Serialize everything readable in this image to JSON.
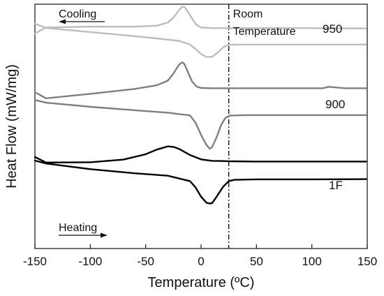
{
  "chart_data": {
    "type": "line",
    "xlabel": "Temperature (ºC)",
    "ylabel": "Heat Flow (mW/mg)",
    "xlim": [
      -150,
      150
    ],
    "xticks": [
      -150,
      -100,
      -50,
      0,
      50,
      100,
      150
    ],
    "xtick_labels": [
      "-150",
      "-100",
      "-50",
      "0",
      "50",
      "100",
      "150"
    ],
    "y_tick_labels_shown": false,
    "grid": false,
    "legend": "none",
    "ylim": [
      0,
      100
    ],
    "reference_line": {
      "x": 25,
      "label_lines": [
        "Room",
        "Temperature"
      ],
      "style": "dash-dot"
    },
    "annotations": {
      "cooling": "Cooling",
      "heating": "Heating"
    },
    "series": [
      {
        "name": "950",
        "color": "#bdbdbd",
        "curves": [
          {
            "direction": "cooling",
            "x": [
              -150,
              -140,
              -100,
              -60,
              -40,
              -30,
              -25,
              -20,
              -17,
              -15,
              -12,
              -8,
              -4,
              0,
              10,
              30,
              60,
              100,
              149
            ],
            "y": [
              88,
              90.5,
              90.8,
              90.8,
              91.2,
              92.5,
              94.5,
              97.5,
              99,
              98.8,
              97,
              94,
              91.5,
              90.5,
              90.2,
              90.2,
              90.2,
              90.2,
              90.1
            ]
          },
          {
            "direction": "heating",
            "x": [
              -150,
              -140,
              -100,
              -60,
              -40,
              -20,
              -10,
              -5,
              0,
              5,
              10,
              15,
              20,
              25,
              40,
              80,
              120,
              149
            ],
            "y": [
              92,
              90.3,
              88.6,
              86.9,
              86,
              85,
              83.5,
              81.7,
              79.6,
              78.4,
              78.5,
              80.2,
              82.4,
              83.4,
              83.5,
              83.5,
              83.5,
              83.5
            ]
          }
        ]
      },
      {
        "name": "900",
        "color": "#7f7f7f",
        "curves": [
          {
            "direction": "cooling",
            "x": [
              -150,
              -140,
              -100,
              -60,
              -40,
              -30,
              -25,
              -20,
              -17,
              -15,
              -12,
              -8,
              -4,
              0,
              10,
              30,
              60,
              100,
              110,
              115,
              130,
              149
            ],
            "y": [
              64,
              61.5,
              63.3,
              65.3,
              66.8,
              68.7,
              71.6,
              75.2,
              76.2,
              75.5,
              72.3,
              68.3,
              66.3,
              65.7,
              65.6,
              65.6,
              65.6,
              65.6,
              65.6,
              66.2,
              65.6,
              65.6
            ]
          },
          {
            "direction": "heating",
            "x": [
              -150,
              -140,
              -100,
              -60,
              -30,
              -10,
              -5,
              0,
              5,
              8,
              10,
              14,
              18,
              22,
              26,
              40,
              80,
              120,
              149
            ],
            "y": [
              60.8,
              59.7,
              58,
              56.6,
              55.6,
              54.5,
              51.5,
              46.5,
              42.3,
              40.8,
              41.6,
              45.5,
              50.5,
              53.5,
              54.4,
              54.6,
              54.6,
              54.6,
              54.6
            ]
          }
        ]
      },
      {
        "name": "1F",
        "color": "#000000",
        "curves": [
          {
            "direction": "cooling",
            "x": [
              -150,
              -140,
              -100,
              -70,
              -50,
              -40,
              -30,
              -25,
              -20,
              -10,
              0,
              10,
              20,
              25,
              50,
              100,
              149
            ],
            "y": [
              37.5,
              35.2,
              35.3,
              36.4,
              38.6,
              40.5,
              41.8,
              41.6,
              40.8,
              38.3,
              36.5,
              35.9,
              35.8,
              35.7,
              35.6,
              35.6,
              35.6
            ]
          },
          {
            "direction": "heating",
            "x": [
              -150,
              -140,
              -100,
              -60,
              -30,
              -10,
              -5,
              0,
              5,
              8,
              10,
              14,
              20,
              25,
              30,
              50,
              100,
              149
            ],
            "y": [
              36,
              34.8,
              32.5,
              30.8,
              29.8,
              27.6,
              25,
              21.2,
              18.7,
              18.4,
              18.6,
              21.2,
              25.3,
              27.6,
              28.1,
              28.3,
              28.3,
              28.4
            ]
          }
        ]
      }
    ]
  }
}
